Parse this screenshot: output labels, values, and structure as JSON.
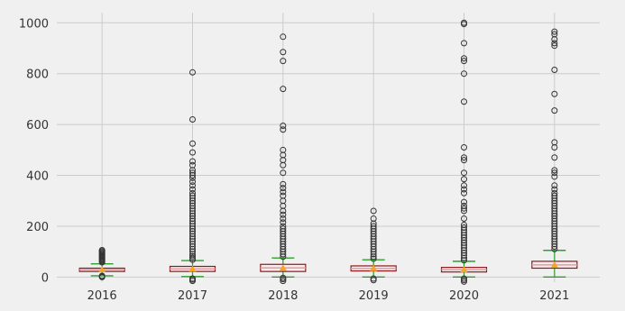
{
  "chart_data": {
    "type": "box",
    "title": "",
    "xlabel": "",
    "ylabel": "",
    "categories": [
      "2016",
      "2017",
      "2018",
      "2019",
      "2020",
      "2021"
    ],
    "ylim": [
      -20,
      1040
    ],
    "yticks": [
      0,
      200,
      400,
      600,
      800,
      1000
    ],
    "grid": true,
    "colors": {
      "background": "#f0f0f0",
      "grid": "#cbcbcb",
      "box_edge": "#8b1a1a",
      "box_fill": "#f8ecec",
      "median": "#e5a0a8",
      "whisker": "#2ca02c",
      "mean_marker": "#f5a623",
      "outlier": "#333333"
    },
    "boxes": [
      {
        "category": "2016",
        "whislo": 5,
        "q1": 22,
        "median": 29,
        "mean": 29,
        "q3": 35,
        "whishi": 52,
        "fliers": [
          0,
          2,
          5,
          58,
          62,
          66,
          70,
          74,
          78,
          82,
          86,
          90,
          94,
          98,
          102,
          106
        ]
      },
      {
        "category": "2017",
        "whislo": 2,
        "q1": 22,
        "median": 32,
        "mean": 32,
        "q3": 42,
        "whishi": 65,
        "fliers": [
          -15,
          -10,
          -6,
          68,
          75,
          82,
          90,
          100,
          110,
          120,
          130,
          140,
          150,
          160,
          170,
          180,
          190,
          200,
          210,
          220,
          230,
          240,
          250,
          260,
          270,
          280,
          290,
          300,
          310,
          320,
          330,
          345,
          360,
          375,
          390,
          400,
          410,
          420,
          440,
          455,
          490,
          525,
          620,
          805
        ]
      },
      {
        "category": "2018",
        "whislo": 0,
        "q1": 22,
        "median": 36,
        "mean": 36,
        "q3": 50,
        "whishi": 75,
        "fliers": [
          -15,
          -8,
          -3,
          80,
          90,
          100,
          110,
          120,
          130,
          140,
          150,
          160,
          170,
          180,
          190,
          200,
          215,
          230,
          245,
          260,
          280,
          300,
          320,
          335,
          350,
          365,
          410,
          440,
          460,
          480,
          500,
          580,
          595,
          740,
          850,
          885,
          945
        ]
      },
      {
        "category": "2019",
        "whislo": 0,
        "q1": 24,
        "median": 34,
        "mean": 34,
        "q3": 44,
        "whishi": 68,
        "fliers": [
          -12,
          -6,
          72,
          80,
          90,
          100,
          110,
          120,
          130,
          140,
          150,
          160,
          170,
          180,
          190,
          200,
          210,
          230,
          260
        ]
      },
      {
        "category": "2020",
        "whislo": 0,
        "q1": 20,
        "median": 29,
        "mean": 29,
        "q3": 38,
        "whishi": 62,
        "fliers": [
          -18,
          -12,
          -6,
          66,
          75,
          85,
          95,
          105,
          115,
          125,
          135,
          145,
          155,
          165,
          175,
          185,
          195,
          205,
          230,
          260,
          270,
          280,
          295,
          330,
          345,
          360,
          385,
          410,
          460,
          470,
          510,
          690,
          800,
          850,
          860,
          920,
          995,
          1000
        ]
      },
      {
        "category": "2021",
        "whislo": 0,
        "q1": 35,
        "median": 48,
        "mean": 48,
        "q3": 62,
        "whishi": 105,
        "fliers": [
          110,
          120,
          130,
          140,
          150,
          160,
          170,
          180,
          190,
          200,
          210,
          220,
          230,
          240,
          250,
          260,
          270,
          280,
          290,
          300,
          310,
          320,
          330,
          345,
          360,
          395,
          410,
          420,
          470,
          510,
          530,
          655,
          720,
          815,
          910,
          920,
          935,
          955,
          965
        ]
      }
    ]
  }
}
